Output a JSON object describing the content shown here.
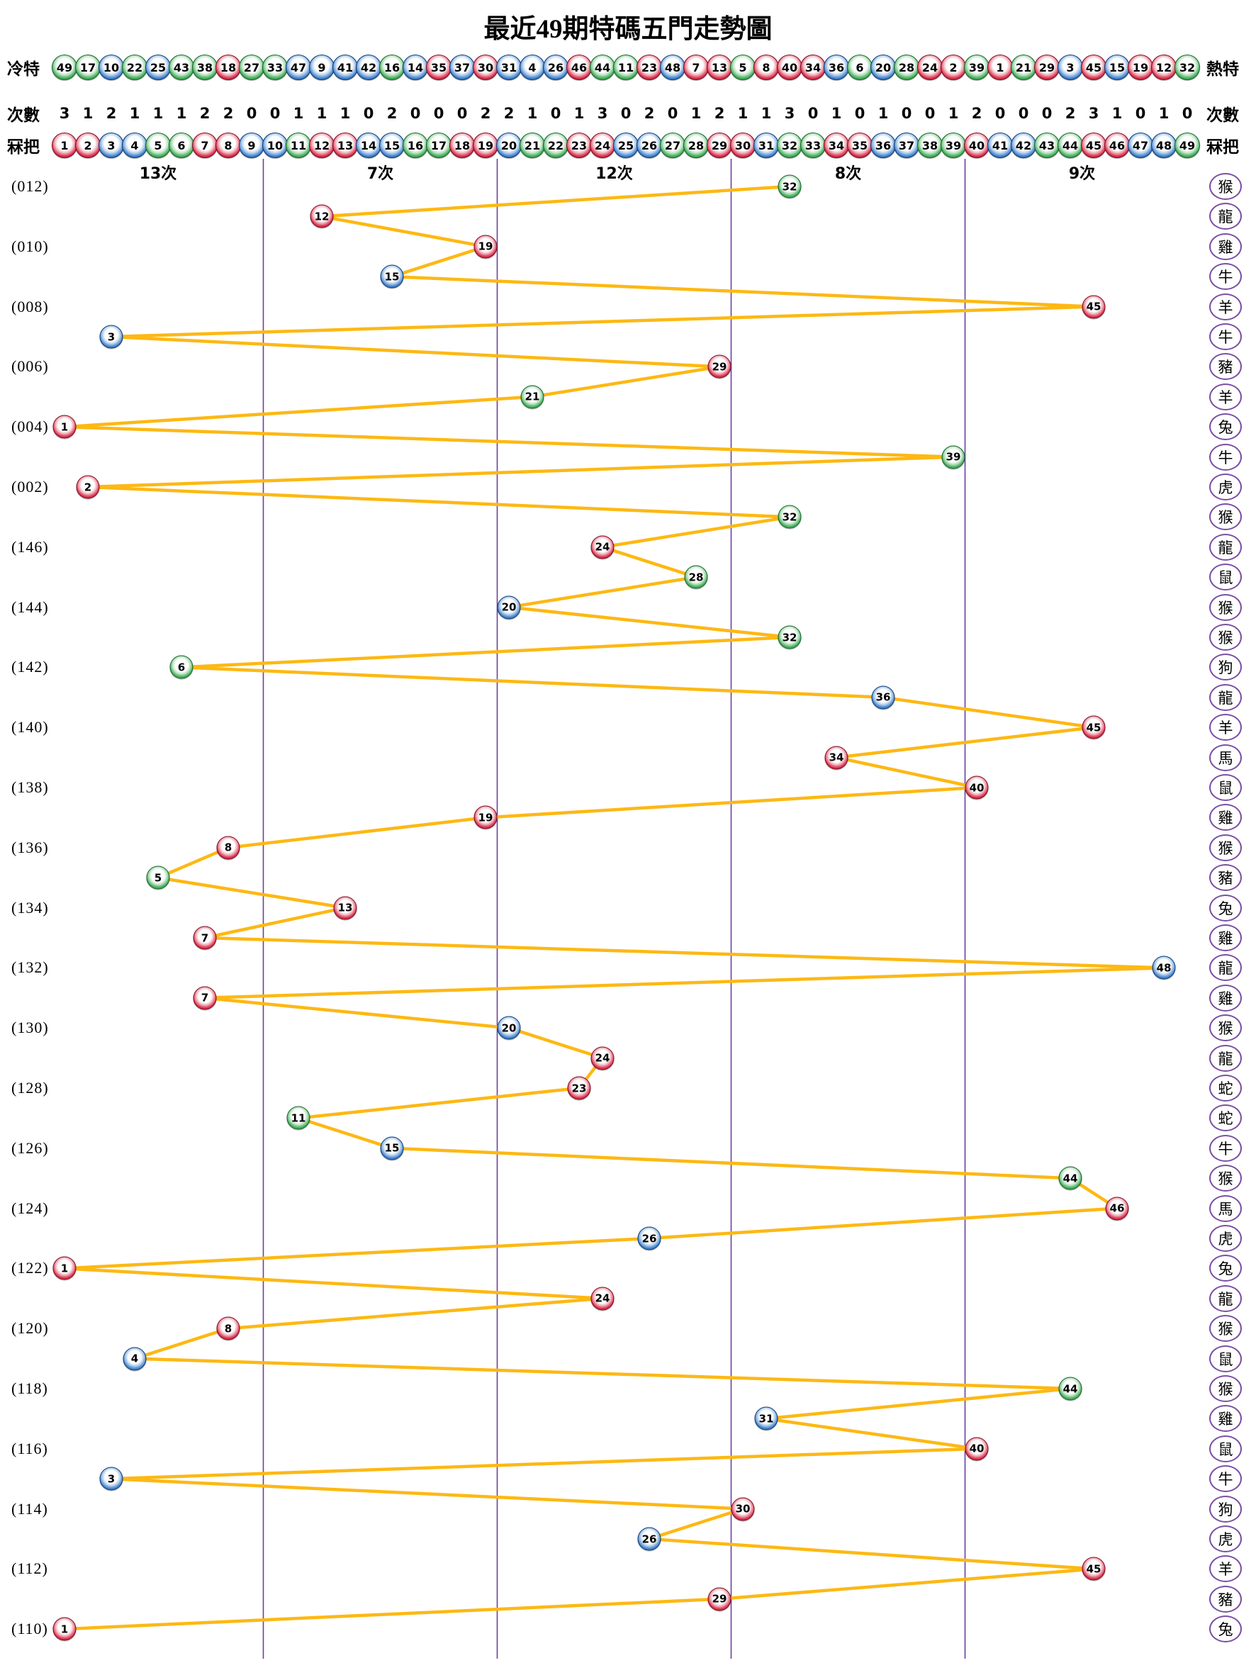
{
  "title": "最近49期特碼五門走勢圖",
  "header": {
    "cold_label": "冷特",
    "hot_label": "熱特",
    "counts_label_left": "次數",
    "counts_label_right": "次數",
    "numbers_label_left": "冧把",
    "numbers_label_right": "冧把",
    "cold_order": [
      49,
      17,
      10,
      22,
      25,
      43,
      38,
      18,
      27,
      33,
      47,
      9,
      41,
      42,
      16,
      14,
      35,
      37,
      30,
      31,
      4,
      26,
      46,
      44,
      11,
      23,
      48,
      7,
      13,
      5,
      8,
      40,
      34,
      36,
      6,
      20,
      28,
      24,
      2,
      39,
      1,
      21,
      29,
      3,
      45,
      15,
      19,
      12,
      32
    ],
    "counts": [
      3,
      1,
      2,
      1,
      1,
      1,
      2,
      2,
      0,
      0,
      1,
      1,
      1,
      0,
      2,
      0,
      0,
      0,
      2,
      2,
      1,
      0,
      1,
      3,
      0,
      2,
      0,
      1,
      2,
      1,
      1,
      3,
      0,
      1,
      0,
      1,
      0,
      0,
      1,
      2,
      0,
      0,
      0,
      2,
      3,
      1,
      0,
      1,
      0
    ],
    "numbers": [
      1,
      2,
      3,
      4,
      5,
      6,
      7,
      8,
      9,
      10,
      11,
      12,
      13,
      14,
      15,
      16,
      17,
      18,
      19,
      20,
      21,
      22,
      23,
      24,
      25,
      26,
      27,
      28,
      29,
      30,
      31,
      32,
      33,
      34,
      35,
      36,
      37,
      38,
      39,
      40,
      41,
      42,
      43,
      44,
      45,
      46,
      47,
      48,
      49
    ]
  },
  "zones": {
    "labels": [
      "13次",
      "7次",
      "12次",
      "8次",
      "9次"
    ],
    "boundaries_after": [
      9,
      19,
      29,
      39
    ]
  },
  "ball_colors": {
    "red": [
      1,
      2,
      7,
      8,
      12,
      13,
      18,
      19,
      23,
      24,
      29,
      30,
      34,
      35,
      40,
      45,
      46
    ],
    "blue": [
      3,
      4,
      9,
      10,
      14,
      15,
      20,
      25,
      26,
      31,
      36,
      37,
      41,
      42,
      47,
      48
    ],
    "green": [
      5,
      6,
      11,
      16,
      17,
      21,
      22,
      27,
      28,
      32,
      33,
      38,
      39,
      43,
      44,
      49
    ]
  },
  "palette": {
    "line": "#FDB813",
    "separator": "#6B3FA0",
    "zodiac_ring": "#7A4FA3",
    "ball_red": "#C01030",
    "ball_blue": "#1C63B7",
    "ball_green": "#2E9E44"
  },
  "chart_data": {
    "type": "line",
    "title": "最近49期特碼五門走勢圖",
    "x_axis_meaning": "特碼號碼 1-49，分五門：1-9 / 10-19 / 20-29 / 30-39 / 40-49",
    "y_axis_meaning": "期數，由新(012)到舊(110)，每行一期",
    "zone_counts": [
      13,
      7,
      12,
      8,
      9
    ],
    "rows": [
      {
        "period": "(012)",
        "value": 32,
        "zodiac": "猴"
      },
      {
        "period": "",
        "value": 12,
        "zodiac": "龍"
      },
      {
        "period": "(010)",
        "value": 19,
        "zodiac": "雞"
      },
      {
        "period": "",
        "value": 15,
        "zodiac": "牛"
      },
      {
        "period": "(008)",
        "value": 45,
        "zodiac": "羊"
      },
      {
        "period": "",
        "value": 3,
        "zodiac": "牛"
      },
      {
        "period": "(006)",
        "value": 29,
        "zodiac": "豬"
      },
      {
        "period": "",
        "value": 21,
        "zodiac": "羊"
      },
      {
        "period": "(004)",
        "value": 1,
        "zodiac": "兔"
      },
      {
        "period": "",
        "value": 39,
        "zodiac": "牛"
      },
      {
        "period": "(002)",
        "value": 2,
        "zodiac": "虎"
      },
      {
        "period": "",
        "value": 32,
        "zodiac": "猴"
      },
      {
        "period": "(146)",
        "value": 24,
        "zodiac": "龍"
      },
      {
        "period": "",
        "value": 28,
        "zodiac": "鼠"
      },
      {
        "period": "(144)",
        "value": 20,
        "zodiac": "猴"
      },
      {
        "period": "",
        "value": 32,
        "zodiac": "猴"
      },
      {
        "period": "(142)",
        "value": 6,
        "zodiac": "狗"
      },
      {
        "period": "",
        "value": 36,
        "zodiac": "龍"
      },
      {
        "period": "(140)",
        "value": 45,
        "zodiac": "羊"
      },
      {
        "period": "",
        "value": 34,
        "zodiac": "馬"
      },
      {
        "period": "(138)",
        "value": 40,
        "zodiac": "鼠"
      },
      {
        "period": "",
        "value": 19,
        "zodiac": "雞"
      },
      {
        "period": "(136)",
        "value": 8,
        "zodiac": "猴"
      },
      {
        "period": "",
        "value": 5,
        "zodiac": "豬"
      },
      {
        "period": "(134)",
        "value": 13,
        "zodiac": "兔"
      },
      {
        "period": "",
        "value": 7,
        "zodiac": "雞"
      },
      {
        "period": "(132)",
        "value": 48,
        "zodiac": "龍"
      },
      {
        "period": "",
        "value": 7,
        "zodiac": "雞"
      },
      {
        "period": "(130)",
        "value": 20,
        "zodiac": "猴"
      },
      {
        "period": "",
        "value": 24,
        "zodiac": "龍"
      },
      {
        "period": "(128)",
        "value": 23,
        "zodiac": "蛇"
      },
      {
        "period": "",
        "value": 11,
        "zodiac": "蛇"
      },
      {
        "period": "(126)",
        "value": 15,
        "zodiac": "牛"
      },
      {
        "period": "",
        "value": 44,
        "zodiac": "猴"
      },
      {
        "period": "(124)",
        "value": 46,
        "zodiac": "馬"
      },
      {
        "period": "",
        "value": 26,
        "zodiac": "虎"
      },
      {
        "period": "(122)",
        "value": 1,
        "zodiac": "兔"
      },
      {
        "period": "",
        "value": 24,
        "zodiac": "龍"
      },
      {
        "period": "(120)",
        "value": 8,
        "zodiac": "猴"
      },
      {
        "period": "",
        "value": 4,
        "zodiac": "鼠"
      },
      {
        "period": "(118)",
        "value": 44,
        "zodiac": "猴"
      },
      {
        "period": "",
        "value": 31,
        "zodiac": "雞"
      },
      {
        "period": "(116)",
        "value": 40,
        "zodiac": "鼠"
      },
      {
        "period": "",
        "value": 3,
        "zodiac": "牛"
      },
      {
        "period": "(114)",
        "value": 30,
        "zodiac": "狗"
      },
      {
        "period": "",
        "value": 26,
        "zodiac": "虎"
      },
      {
        "period": "(112)",
        "value": 45,
        "zodiac": "羊"
      },
      {
        "period": "",
        "value": 29,
        "zodiac": "豬"
      },
      {
        "period": "(110)",
        "value": 1,
        "zodiac": "兔"
      }
    ]
  }
}
